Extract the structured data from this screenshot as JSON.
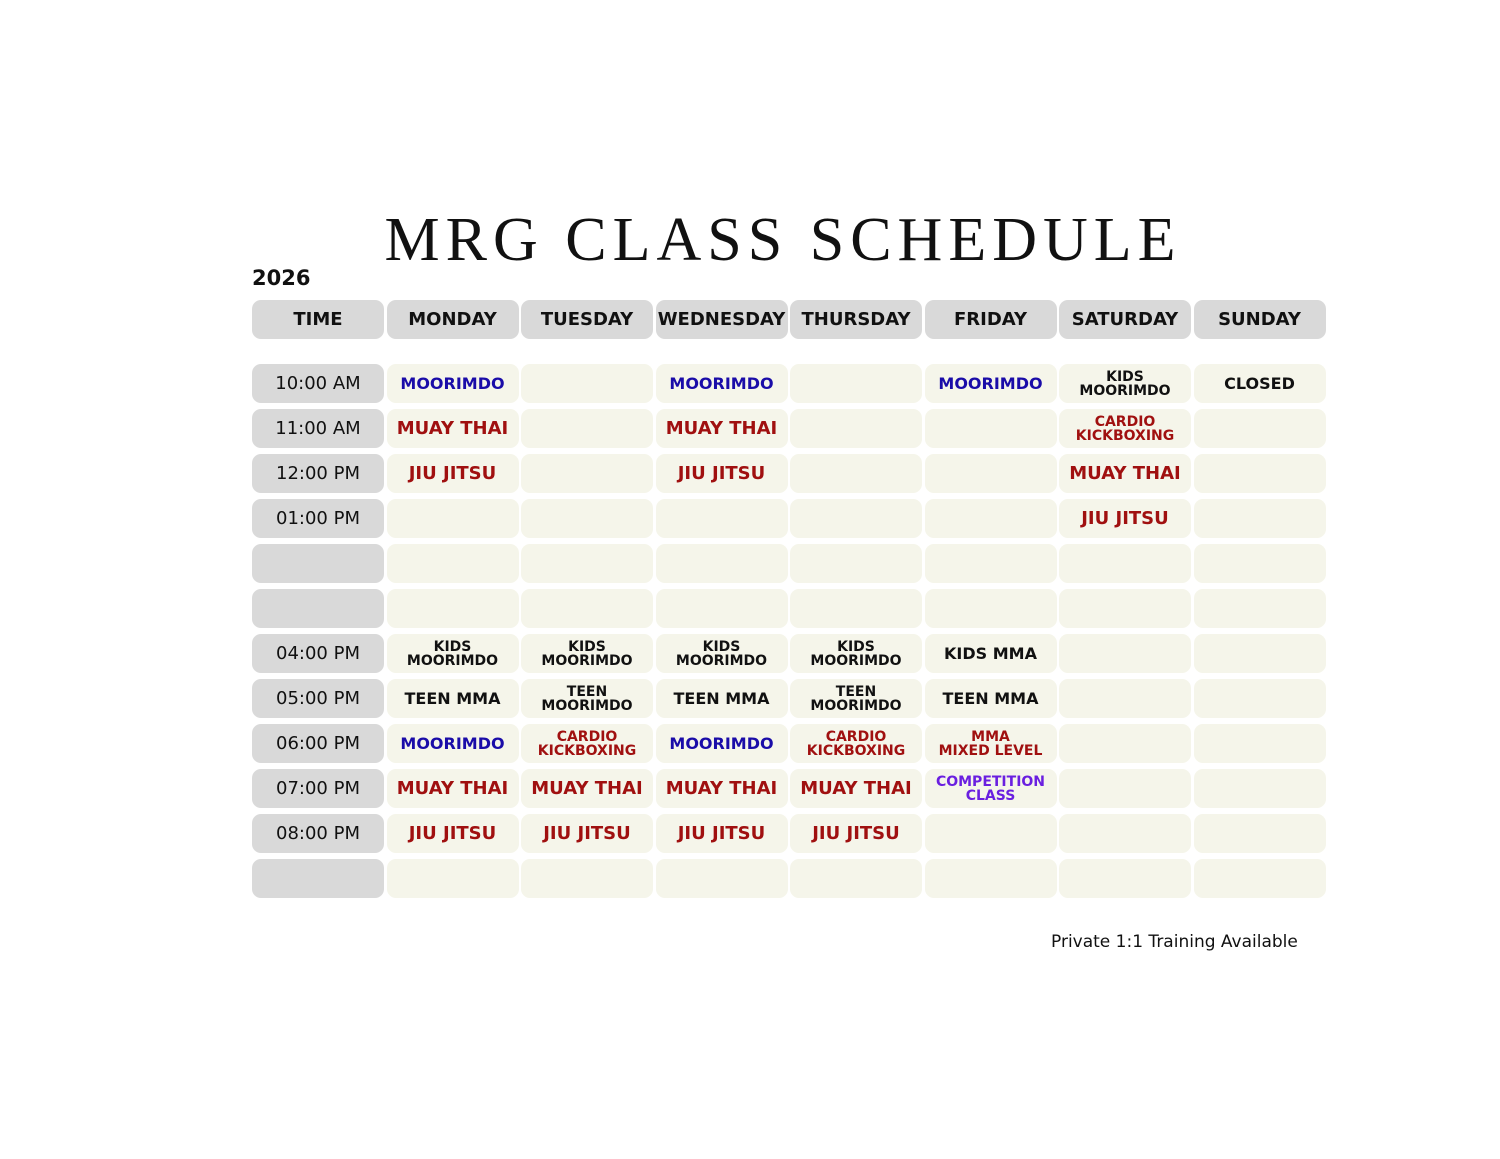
{
  "header": {
    "title": "MRG CLASS SCHEDULE",
    "year": "2026"
  },
  "table": {
    "time_label": "TIME",
    "days": [
      "MONDAY",
      "TUESDAY",
      "WEDNESDAY",
      "THURSDAY",
      "FRIDAY",
      "SATURDAY",
      "SUNDAY"
    ],
    "rows": [
      {
        "time": "10:00 AM",
        "cells": [
          {
            "text": "MOORIMDO",
            "color": "#1a0ca8"
          },
          null,
          {
            "text": "MOORIMDO",
            "color": "#1a0ca8"
          },
          null,
          {
            "text": "MOORIMDO",
            "color": "#1a0ca8"
          },
          {
            "text": "KIDS\nMOORIMDO",
            "color": "#111111"
          },
          {
            "text": "CLOSED",
            "color": "#111111"
          }
        ]
      },
      {
        "time": "11:00 AM",
        "cells": [
          {
            "text": "MUAY THAI",
            "color": "#a01010"
          },
          null,
          {
            "text": "MUAY THAI",
            "color": "#a01010"
          },
          null,
          null,
          {
            "text": "CARDIO\nKICKBOXING",
            "color": "#a01010"
          },
          null
        ]
      },
      {
        "time": "12:00 PM",
        "cells": [
          {
            "text": "JIU JITSU",
            "color": "#a01010"
          },
          null,
          {
            "text": "JIU JITSU",
            "color": "#a01010"
          },
          null,
          null,
          {
            "text": "MUAY THAI",
            "color": "#a01010"
          },
          null
        ]
      },
      {
        "time": "01:00 PM",
        "cells": [
          null,
          null,
          null,
          null,
          null,
          {
            "text": "JIU JITSU",
            "color": "#a01010"
          },
          null
        ]
      },
      {
        "time": null,
        "cells": [
          null,
          null,
          null,
          null,
          null,
          null,
          null
        ]
      },
      {
        "time": null,
        "cells": [
          null,
          null,
          null,
          null,
          null,
          null,
          null
        ]
      },
      {
        "time": "04:00 PM",
        "cells": [
          {
            "text": "KIDS\nMOORIMDO",
            "color": "#111111"
          },
          {
            "text": "KIDS\nMOORIMDO",
            "color": "#111111"
          },
          {
            "text": "KIDS\nMOORIMDO",
            "color": "#111111"
          },
          {
            "text": "KIDS\nMOORIMDO",
            "color": "#111111"
          },
          {
            "text": "KIDS MMA",
            "color": "#111111"
          },
          null,
          null
        ]
      },
      {
        "time": "05:00 PM",
        "cells": [
          {
            "text": "TEEN MMA",
            "color": "#111111"
          },
          {
            "text": "TEEN\nMOORIMDO",
            "color": "#111111"
          },
          {
            "text": "TEEN MMA",
            "color": "#111111"
          },
          {
            "text": "TEEN\nMOORIMDO",
            "color": "#111111"
          },
          {
            "text": "TEEN MMA",
            "color": "#111111"
          },
          null,
          null
        ]
      },
      {
        "time": "06:00 PM",
        "cells": [
          {
            "text": "MOORIMDO",
            "color": "#1a0ca8"
          },
          {
            "text": "CARDIO\nKICKBOXING",
            "color": "#a01010"
          },
          {
            "text": "MOORIMDO",
            "color": "#1a0ca8"
          },
          {
            "text": "CARDIO\nKICKBOXING",
            "color": "#a01010"
          },
          {
            "text": "MMA\nMIXED LEVEL",
            "color": "#a01010"
          },
          null,
          null
        ]
      },
      {
        "time": "07:00 PM",
        "cells": [
          {
            "text": "MUAY THAI",
            "color": "#a01010"
          },
          {
            "text": "MUAY THAI",
            "color": "#a01010"
          },
          {
            "text": "MUAY THAI",
            "color": "#a01010"
          },
          {
            "text": "MUAY THAI",
            "color": "#a01010"
          },
          {
            "text": "COMPETITION\nCLASS",
            "color": "#6a1fe0"
          },
          null,
          null
        ]
      },
      {
        "time": "08:00 PM",
        "cells": [
          {
            "text": "JIU JITSU",
            "color": "#a01010"
          },
          {
            "text": "JIU JITSU",
            "color": "#a01010"
          },
          {
            "text": "JIU JITSU",
            "color": "#a01010"
          },
          {
            "text": "JIU JITSU",
            "color": "#a01010"
          },
          null,
          null,
          null
        ]
      },
      {
        "time": null,
        "cells": [
          null,
          null,
          null,
          null,
          null,
          null,
          null
        ]
      }
    ]
  },
  "footer": {
    "note": "Private 1:1 Training Available"
  }
}
